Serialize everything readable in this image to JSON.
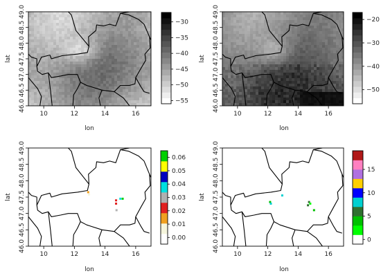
{
  "chart_data": [
    {
      "type": "heatmap",
      "xlabel": "lon",
      "ylabel": "lat",
      "xticks": [
        10,
        12,
        14,
        16
      ],
      "yticks": [
        46.0,
        46.5,
        47.0,
        47.5,
        48.0,
        48.5,
        49.0
      ],
      "xlim": [
        9,
        17
      ],
      "ylim": [
        46,
        49
      ],
      "colorbar": {
        "ticks": [
          -30,
          -35,
          -40,
          -45,
          -50,
          -55
        ],
        "range": [
          -56,
          -27
        ],
        "palette": "grayscale"
      }
    },
    {
      "type": "heatmap",
      "xlabel": "lon",
      "ylabel": "lat",
      "xticks": [
        10,
        12,
        14,
        16
      ],
      "yticks": [
        46.0,
        46.5,
        47.0,
        47.5,
        48.0,
        48.5,
        49.0
      ],
      "xlim": [
        9,
        17
      ],
      "ylim": [
        46,
        49
      ],
      "colorbar": {
        "ticks": [
          -20,
          -30,
          -40,
          -50
        ],
        "range": [
          -56,
          -17
        ],
        "palette": "grayscale"
      }
    },
    {
      "type": "heatmap",
      "xlabel": "lon",
      "ylabel": "lat",
      "xticks": [
        10,
        12,
        14,
        16
      ],
      "yticks": [
        46.0,
        46.5,
        47.0,
        47.5,
        48.0,
        48.5,
        49.0
      ],
      "xlim": [
        9,
        17
      ],
      "ylim": [
        46,
        49
      ],
      "colorbar": {
        "ticks": [
          "0.06",
          "0.05",
          "0.04",
          "0.03",
          "0.02",
          "0.01",
          "0.00"
        ],
        "range": [
          -0.005,
          0.065
        ],
        "colors": [
          "#ffffff",
          "#f5f5dc",
          "#f0a020",
          "#e02020",
          "#b0b0b0",
          "#00e0e0",
          "#0000c0",
          "#ffff00",
          "#00d000"
        ]
      }
    },
    {
      "type": "heatmap",
      "xlabel": "lon",
      "ylabel": "lat",
      "xticks": [
        10,
        12,
        14,
        16
      ],
      "yticks": [
        46.0,
        46.5,
        47.0,
        47.5,
        48.0,
        48.5,
        49.0
      ],
      "xlim": [
        9,
        17
      ],
      "ylim": [
        46,
        49
      ],
      "colorbar": {
        "ticks": [
          15,
          10,
          5,
          0
        ],
        "range": [
          -1,
          19
        ],
        "colors": [
          "#ffffff",
          "#00ff00",
          "#00c000",
          "#307030",
          "#00d0d0",
          "#0000ff",
          "#ffd000",
          "#b070e0",
          "#ff80c0",
          "#b01818"
        ]
      }
    }
  ]
}
